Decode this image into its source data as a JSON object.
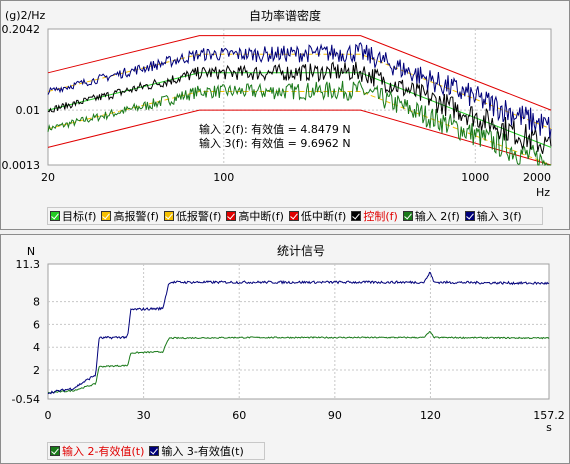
{
  "psd_chart": {
    "title": "自功率谱密度",
    "y_unit": "(g)2/Hz",
    "x_unit": "Hz",
    "y_ticks": [
      "0.2042",
      "0.01",
      "0.0013"
    ],
    "x_ticks": [
      "20",
      "100",
      "1000",
      "2000"
    ],
    "annotation_1": "输入 2(f): 有效值 = 4.8479 N",
    "annotation_2": "输入 3(f): 有效值 = 9.6962 N",
    "legend": [
      {
        "label": "目标(f)",
        "color": "#22cc22",
        "text_color": "#000000"
      },
      {
        "label": "高报警(f)",
        "color": "#f5c000",
        "text_color": "#000000"
      },
      {
        "label": "低报警(f)",
        "color": "#f5c000",
        "text_color": "#000000"
      },
      {
        "label": "高中断(f)",
        "color": "#e00000",
        "text_color": "#000000"
      },
      {
        "label": "低中断(f)",
        "color": "#e00000",
        "text_color": "#000000"
      },
      {
        "label": "控制(f)",
        "color": "#000000",
        "text_color": "#e00000"
      },
      {
        "label": "输入 2(f)",
        "color": "#1a7a1a",
        "text_color": "#000000"
      },
      {
        "label": "输入 3(f)",
        "color": "#00007a",
        "text_color": "#000000"
      }
    ]
  },
  "stat_chart": {
    "title": "统计信号",
    "y_unit": "N",
    "x_unit": "s",
    "y_ticks": [
      "11.3",
      "8",
      "6",
      "4",
      "2",
      "-0.54"
    ],
    "x_ticks": [
      "0",
      "30",
      "60",
      "90",
      "120",
      "157.2"
    ],
    "legend": [
      {
        "label": "输入 2-有效值(t)",
        "color": "#1a7a1a",
        "text_color": "#e00000"
      },
      {
        "label": "输入 3-有效值(t)",
        "color": "#00007a",
        "text_color": "#000000"
      }
    ]
  },
  "chart_data": [
    {
      "type": "line",
      "title": "自功率谱密度",
      "xlabel": "Hz",
      "ylabel": "(g)2/Hz",
      "xscale": "log",
      "yscale": "log",
      "xlim": [
        20,
        2000
      ],
      "ylim": [
        0.0013,
        0.2042
      ],
      "series": [
        {
          "name": "目标(f)",
          "x": [
            20,
            80,
            350,
            2000
          ],
          "y": [
            0.01,
            0.04,
            0.04,
            0.0025
          ]
        },
        {
          "name": "高报警(f)",
          "x": [
            20,
            80,
            350,
            2000
          ],
          "y": [
            0.02,
            0.08,
            0.08,
            0.005
          ]
        },
        {
          "name": "低报警(f)",
          "x": [
            20,
            80,
            350,
            2000
          ],
          "y": [
            0.005,
            0.02,
            0.02,
            0.00125
          ]
        },
        {
          "name": "高中断(f)",
          "x": [
            20,
            80,
            350,
            2000
          ],
          "y": [
            0.04,
            0.16,
            0.16,
            0.01
          ]
        },
        {
          "name": "低中断(f)",
          "x": [
            20,
            80,
            350,
            2000
          ],
          "y": [
            0.0025,
            0.01,
            0.01,
            0.00063
          ]
        },
        {
          "name": "控制(f)",
          "x": [
            20,
            50,
            80,
            150,
            350,
            1000,
            2000
          ],
          "y": [
            0.01,
            0.025,
            0.04,
            0.04,
            0.042,
            0.008,
            0.0025
          ]
        },
        {
          "name": "输入 2(f)",
          "x": [
            20,
            50,
            80,
            150,
            350,
            1000,
            2000
          ],
          "y": [
            0.005,
            0.012,
            0.02,
            0.02,
            0.021,
            0.004,
            0.0013
          ]
        },
        {
          "name": "输入 3(f)",
          "x": [
            20,
            50,
            80,
            150,
            350,
            1000,
            2000
          ],
          "y": [
            0.02,
            0.05,
            0.08,
            0.08,
            0.085,
            0.016,
            0.005
          ]
        }
      ]
    },
    {
      "type": "line",
      "title": "统计信号",
      "xlabel": "s",
      "ylabel": "N",
      "xlim": [
        0,
        157.2
      ],
      "ylim": [
        -0.54,
        11.3
      ],
      "series": [
        {
          "name": "输入 2-有效值(t)",
          "x": [
            0,
            8,
            15,
            16,
            25,
            26,
            36,
            38,
            60,
            90,
            118,
            120,
            121,
            157.2
          ],
          "y": [
            0,
            0.2,
            0.8,
            2.3,
            2.4,
            3.5,
            3.6,
            4.8,
            4.85,
            4.85,
            4.85,
            5.4,
            4.85,
            4.8
          ]
        },
        {
          "name": "输入 3-有效值(t)",
          "x": [
            0,
            8,
            15,
            16,
            25,
            26,
            36,
            38,
            60,
            90,
            118,
            120,
            121,
            157.2
          ],
          "y": [
            0,
            0.4,
            1.6,
            4.8,
            4.9,
            7.3,
            7.4,
            9.7,
            9.7,
            9.7,
            9.7,
            10.6,
            9.7,
            9.6
          ]
        }
      ]
    }
  ]
}
